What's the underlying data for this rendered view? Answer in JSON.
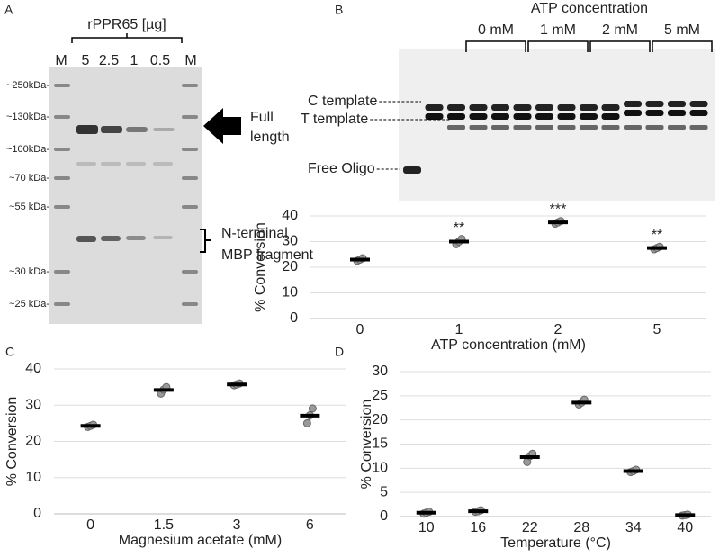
{
  "gel_a": {
    "panel": "A",
    "title": "rPPR65 [µg]",
    "lanes": [
      "M",
      "5",
      "2.5",
      "1",
      "0.5",
      "M"
    ],
    "markers": [
      "~250kDa-",
      "~130kDa-",
      "~100kDa-",
      "~70 kDa-",
      "~55 kDa-",
      "~30 kDa-",
      "~25 kDa-"
    ],
    "annotations": [
      "Full",
      "length",
      "N-terminal",
      "MBP fragment"
    ]
  },
  "gel_b": {
    "panel": "B",
    "title": "ATP concentration",
    "groups": [
      "0 mM",
      "1 mM",
      "2 mM",
      "5 mM"
    ],
    "bands": [
      "C template",
      "T template",
      "Free Oligo"
    ]
  },
  "chart_data": [
    {
      "type": "dot",
      "categories": [
        "0",
        "1",
        "2",
        "5"
      ],
      "values": [
        23,
        30,
        37.5,
        27.5
      ],
      "errors": [
        0.5,
        1,
        0.7,
        0.7
      ],
      "points": [
        [
          22.5,
          23,
          23.5
        ],
        [
          29,
          30,
          31
        ],
        [
          37,
          37.5,
          38
        ],
        [
          27,
          27.5,
          28
        ]
      ],
      "significance": [
        null,
        "**",
        "***",
        "**"
      ],
      "xlabel": "ATP concentration (mM)",
      "ylabel": "% Conversion",
      "ylim": [
        0,
        40
      ],
      "yticks": [
        0,
        10,
        20,
        30,
        40
      ],
      "grid": true,
      "color": "#999999"
    },
    {
      "type": "dot",
      "panel": "C",
      "categories": [
        "0",
        "1.5",
        "3",
        "6"
      ],
      "values": [
        24.3,
        34.2,
        35.7,
        27.1
      ],
      "errors": [
        0.5,
        1,
        0.4,
        2
      ],
      "points": [
        [
          24,
          24.3,
          24.6
        ],
        [
          33.2,
          34.3,
          35
        ],
        [
          35.5,
          35.7,
          36
        ],
        [
          25,
          27.2,
          29.1
        ]
      ],
      "xlabel": "Magnesium acetate (mM)",
      "ylabel": "% Conversion",
      "ylim": [
        0,
        40
      ],
      "yticks": [
        0,
        10,
        20,
        30,
        40
      ],
      "grid": true,
      "color": "#999999"
    },
    {
      "type": "dot",
      "panel": "D",
      "categories": [
        "10",
        "16",
        "22",
        "28",
        "34",
        "40"
      ],
      "values": [
        0.8,
        1.1,
        12.3,
        23.6,
        9.4,
        0.3
      ],
      "errors": [
        0.3,
        0.2,
        0.8,
        0.5,
        0.3,
        0.1
      ],
      "points": [
        [
          0.6,
          0.8,
          1
        ],
        [
          1,
          1.1,
          1.3
        ],
        [
          11.3,
          12.5,
          13
        ],
        [
          23.2,
          23.6,
          24.2
        ],
        [
          9.2,
          9.4,
          9.7
        ],
        [
          0.2,
          0.3,
          0.4
        ]
      ],
      "xlabel": "Temperature (°C)",
      "ylabel": "% Conversion",
      "ylim": [
        0,
        30
      ],
      "yticks": [
        0,
        5,
        10,
        15,
        20,
        25,
        30
      ],
      "grid": true,
      "color": "#999999"
    }
  ]
}
